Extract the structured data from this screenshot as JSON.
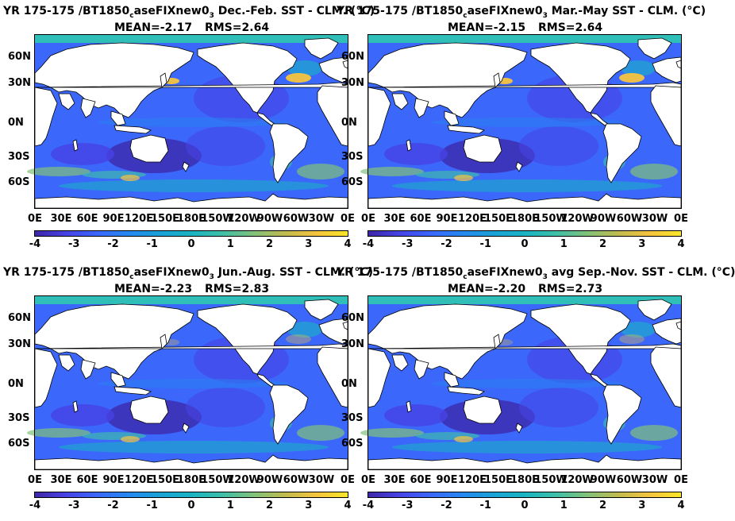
{
  "colors": {
    "colormap": [
      "#3e26a8",
      "#4743e5",
      "#3b67fb",
      "#2588f0",
      "#1aa2d6",
      "#19b4c3",
      "#3fbfa8",
      "#80c27a",
      "#c1bb4e",
      "#f5c43e",
      "#f9e629"
    ],
    "land": "#ffffff",
    "seaice": "#2fbfb8"
  },
  "colorbar": {
    "ticks": [
      "-4",
      "-3",
      "-2",
      "-1",
      "0",
      "1",
      "2",
      "3",
      "4"
    ]
  },
  "axes": {
    "lat_ticks": [
      "60N",
      "30N",
      "0N",
      "30S",
      "60S"
    ],
    "lon_ticks": [
      "0E",
      "30E",
      "60E",
      "90E",
      "120E",
      "150E",
      "180E",
      "150W",
      "120W",
      "90W",
      "60W",
      "30W",
      "0E"
    ]
  },
  "panels": [
    {
      "title_pre": "YR 175-175 /BT1850",
      "title_sub": "c",
      "title_mid": "aseFIXnew0",
      "title_sub2": "3",
      "title_post": "  Dec.-Feb. SST - CLM. (°C)",
      "mean": "MEAN=-2.17",
      "rms": "RMS=2.64"
    },
    {
      "title_pre": "YR 175-175 /BT1850",
      "title_sub": "c",
      "title_mid": "aseFIXnew0",
      "title_sub2": "3",
      "title_post": " Mar.-May SST - CLM. (°C)",
      "mean": "MEAN=-2.15",
      "rms": "RMS=2.64"
    },
    {
      "title_pre": "YR 175-175 /BT1850",
      "title_sub": "c",
      "title_mid": "aseFIXnew0",
      "title_sub2": "3",
      "title_post": " Jun.-Aug. SST - CLM. (°C)",
      "mean": "MEAN=-2.23",
      "rms": "RMS=2.83"
    },
    {
      "title_pre": "YR 175-175 /BT1850",
      "title_sub": "c",
      "title_mid": "aseFIXnew0",
      "title_sub2": "3",
      "title_post": " avg Sep.-Nov. SST - CLM. (°C)",
      "mean": "MEAN=-2.20",
      "rms": "RMS=2.73"
    }
  ],
  "chart_data": [
    {
      "type": "heatmap",
      "title": "YR 175-175 /BT1850caseFIXnew03 Dec.-Feb. SST - CLM. (°C)",
      "mean": -2.17,
      "rms": 2.64,
      "colorbar_range": [
        -4,
        4
      ],
      "x_ticks": [
        "0E",
        "30E",
        "60E",
        "90E",
        "120E",
        "150E",
        "180E",
        "150W",
        "120W",
        "90W",
        "60W",
        "30W",
        "0E"
      ],
      "y_ticks": [
        "60N",
        "30N",
        "0N",
        "30S",
        "60S"
      ]
    },
    {
      "type": "heatmap",
      "title": "YR 175-175 /BT1850caseFIXnew03 Mar.-May SST - CLM. (°C)",
      "mean": -2.15,
      "rms": 2.64,
      "colorbar_range": [
        -4,
        4
      ],
      "x_ticks": [
        "0E",
        "30E",
        "60E",
        "90E",
        "120E",
        "150E",
        "180E",
        "150W",
        "120W",
        "90W",
        "60W",
        "30W",
        "0E"
      ],
      "y_ticks": [
        "60N",
        "30N",
        "0N",
        "30S",
        "60S"
      ]
    },
    {
      "type": "heatmap",
      "title": "YR 175-175 /BT1850caseFIXnew03 Jun.-Aug. SST - CLM. (°C)",
      "mean": -2.23,
      "rms": 2.83,
      "colorbar_range": [
        -4,
        4
      ],
      "x_ticks": [
        "0E",
        "30E",
        "60E",
        "90E",
        "120E",
        "150E",
        "180E",
        "150W",
        "120W",
        "90W",
        "60W",
        "30W",
        "0E"
      ],
      "y_ticks": [
        "60N",
        "30N",
        "0N",
        "30S",
        "60S"
      ]
    },
    {
      "type": "heatmap",
      "title": "YR 175-175 /BT1850caseFIXnew03 avg Sep.-Nov. SST - CLM. (°C)",
      "mean": -2.2,
      "rms": 2.73,
      "colorbar_range": [
        -4,
        4
      ],
      "x_ticks": [
        "0E",
        "30E",
        "60E",
        "90E",
        "120E",
        "150E",
        "180E",
        "150W",
        "120W",
        "90W",
        "60W",
        "30W",
        "0E"
      ],
      "y_ticks": [
        "60N",
        "30N",
        "0N",
        "30S",
        "60S"
      ]
    }
  ]
}
